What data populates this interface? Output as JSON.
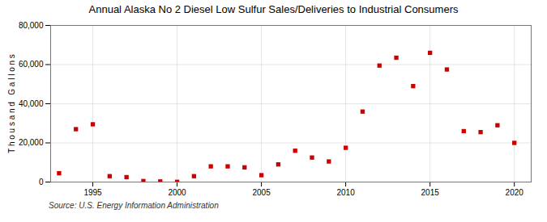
{
  "chart_data": {
    "type": "scatter",
    "title": "Annual Alaska No 2 Diesel Low Sulfur Sales/Deliveries to Industrial Consumers",
    "ylabel": "T h o u s a n d   G a l l o n s",
    "source": "Source: U.S. Energy Information Administration",
    "x": [
      1993,
      1994,
      1995,
      1996,
      1997,
      1998,
      1999,
      2000,
      2001,
      2002,
      2003,
      2004,
      2005,
      2006,
      2007,
      2008,
      2009,
      2010,
      2011,
      2012,
      2013,
      2014,
      2015,
      2016,
      2017,
      2018,
      2019,
      2020
    ],
    "values": [
      4500,
      27000,
      29500,
      3000,
      2500,
      500,
      300,
      100,
      3000,
      8000,
      8000,
      7500,
      3500,
      9000,
      16000,
      12500,
      10500,
      17500,
      36000,
      59500,
      63500,
      49000,
      66000,
      57500,
      26000,
      25500,
      29000,
      20000
    ],
    "color": "#cc0000",
    "marker": "square",
    "xlim": [
      1992.5,
      2021
    ],
    "xticks": [
      1995,
      2000,
      2005,
      2010,
      2015,
      2020
    ],
    "ylim": [
      0,
      80000
    ],
    "yticks": [
      0,
      {
        "value": 20000,
        "label": "20,000"
      },
      {
        "value": 40000,
        "label": "40,000"
      },
      {
        "value": 60000,
        "label": "60,000"
      },
      {
        "value": 80000,
        "label": "80,000"
      }
    ],
    "grid": true
  }
}
